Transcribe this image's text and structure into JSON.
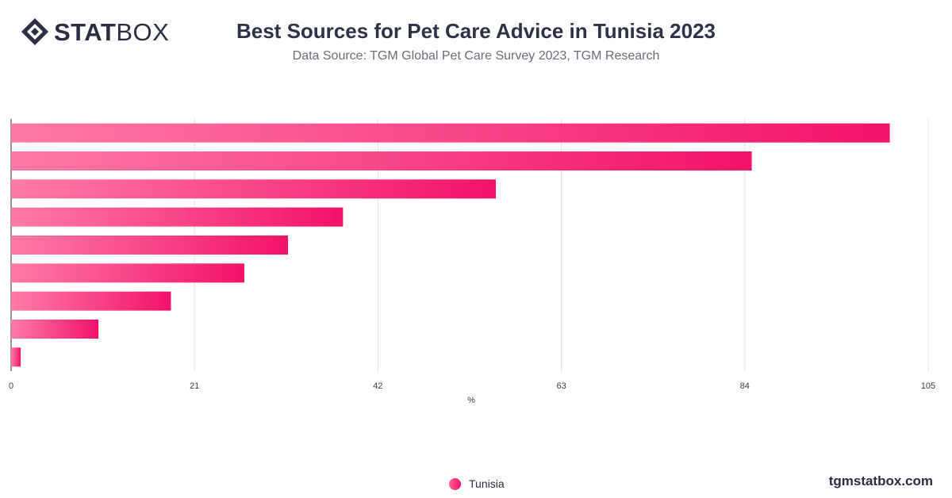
{
  "header": {
    "logo_bold": "STAT",
    "logo_light": "BOX",
    "title": "Best Sources for Pet Care Advice in Tunisia 2023",
    "subtitle": "Data Source: TGM Global Pet Care Survey 2023, TGM Research"
  },
  "footer": {
    "legend_label": "Tunisia",
    "brand": "tgmstatbox.com"
  },
  "colors": {
    "bar_start": "#ff7aa8",
    "bar_end": "#f2126a",
    "grid": "#e2e2e6",
    "axis_text": "#3a3c4e"
  },
  "chart_data": {
    "type": "bar",
    "orientation": "horizontal",
    "title": "Best Sources for Pet Care Advice in Tunisia 2023",
    "xlabel": "%",
    "xlim": [
      0,
      105
    ],
    "xticks": [
      0,
      21,
      42,
      63,
      84,
      105
    ],
    "grid": true,
    "legend_position": "bottom-center",
    "series": [
      {
        "name": "Tunisia",
        "values": [
          100.6,
          84.8,
          55.5,
          38.0,
          31.7,
          26.7,
          18.3,
          10.0,
          1.1
        ]
      }
    ]
  }
}
